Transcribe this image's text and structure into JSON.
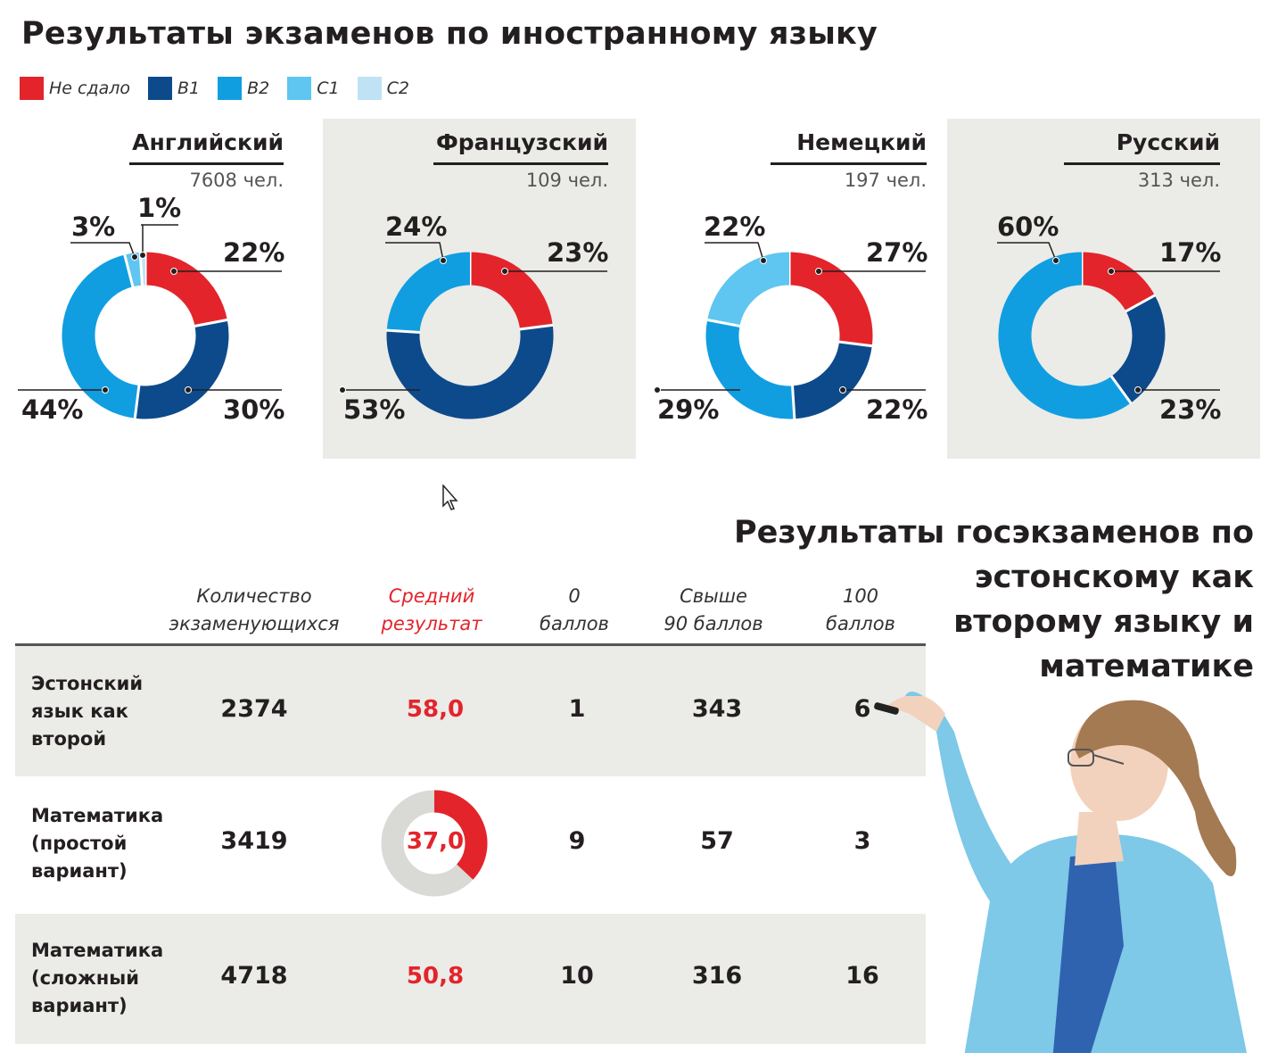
{
  "title": "Результаты экзаменов по иностранному языку",
  "legend": [
    {
      "label": "Не сдало",
      "color": "#e3242b"
    },
    {
      "label": "B1",
      "color": "#0d4a8b"
    },
    {
      "label": "B2",
      "color": "#109ee1"
    },
    {
      "label": "C1",
      "color": "#5ec6f0"
    },
    {
      "label": "C2",
      "color": "#bfe3f5"
    }
  ],
  "languages": [
    {
      "name": "Английский",
      "count": "7608 чел."
    },
    {
      "name": "Французский",
      "count": "109 чел."
    },
    {
      "name": "Немецкий",
      "count": "197 чел."
    },
    {
      "name": "Русский",
      "count": "313 чел."
    }
  ],
  "chart_data": [
    {
      "type": "pie",
      "title": "Английский",
      "subtitle": "7608 чел.",
      "categories": [
        "Не сдало",
        "B1",
        "B2",
        "C1",
        "C2"
      ],
      "values": [
        22,
        30,
        44,
        3,
        1
      ],
      "labels": [
        "22%",
        "30%",
        "44%",
        "3%",
        "1%"
      ]
    },
    {
      "type": "pie",
      "title": "Французский",
      "subtitle": "109 чел.",
      "categories": [
        "Не сдало",
        "B1",
        "B2"
      ],
      "values": [
        23,
        53,
        24
      ],
      "labels": [
        "23%",
        "53%",
        "24%"
      ]
    },
    {
      "type": "pie",
      "title": "Немецкий",
      "subtitle": "197 чел.",
      "categories": [
        "Не сдало",
        "B1",
        "B2",
        "C1"
      ],
      "values": [
        27,
        22,
        29,
        22
      ],
      "labels": [
        "27%",
        "22%",
        "29%",
        "22%"
      ]
    },
    {
      "type": "pie",
      "title": "Русский",
      "subtitle": "313 чел.",
      "categories": [
        "Не сдало",
        "B1",
        "B2"
      ],
      "values": [
        17,
        23,
        60
      ],
      "labels": [
        "17%",
        "23%",
        "60%"
      ]
    },
    {
      "type": "table",
      "title": "Результаты госэкзаменов по эстонскому как второму языку и математике",
      "columns": [
        "Количество экзаменующихся",
        "Средний результат",
        "0 баллов",
        "Свыше 90 баллов",
        "100 баллов"
      ],
      "rows": [
        {
          "name": "Эстонский язык как второй",
          "count": "2374",
          "avg": "58,0",
          "avg_value": 58.0,
          "zero": "1",
          "over90": "343",
          "hundred": "6"
        },
        {
          "name": "Математика (простой вариант)",
          "count": "3419",
          "avg": "37,0",
          "avg_value": 37.0,
          "zero": "9",
          "over90": "57",
          "hundred": "3"
        },
        {
          "name": "Математика (сложный вариант)",
          "count": "4718",
          "avg": "50,8",
          "avg_value": 50.8,
          "zero": "10",
          "over90": "316",
          "hundred": "16"
        }
      ]
    }
  ],
  "table_headers": {
    "count_l1": "Количество",
    "count_l2": "экзаменующихся",
    "avg_l1": "Средний",
    "avg_l2": "результат",
    "zero_l1": "0",
    "zero_l2": "баллов",
    "over90_l1": "Свыше",
    "over90_l2": "90 баллов",
    "hundred_l1": "100",
    "hundred_l2": "баллов"
  },
  "table_rows_text": [
    {
      "l1": "Эстонский",
      "l2": "язык как",
      "l3": "второй"
    },
    {
      "l1": "Математика",
      "l2": "(простой",
      "l3": "вариант)"
    },
    {
      "l1": "Математика",
      "l2": "(сложный",
      "l3": "вариант)"
    }
  ],
  "title2": {
    "l1": "Результаты госэкзаменов по",
    "l2": "эстонскому как",
    "l3": "второму языку и",
    "l4": "математике"
  },
  "colors": {
    "red": "#e3242b",
    "gray_ring": "#d9d9d6",
    "panel": "#ebebe8"
  }
}
